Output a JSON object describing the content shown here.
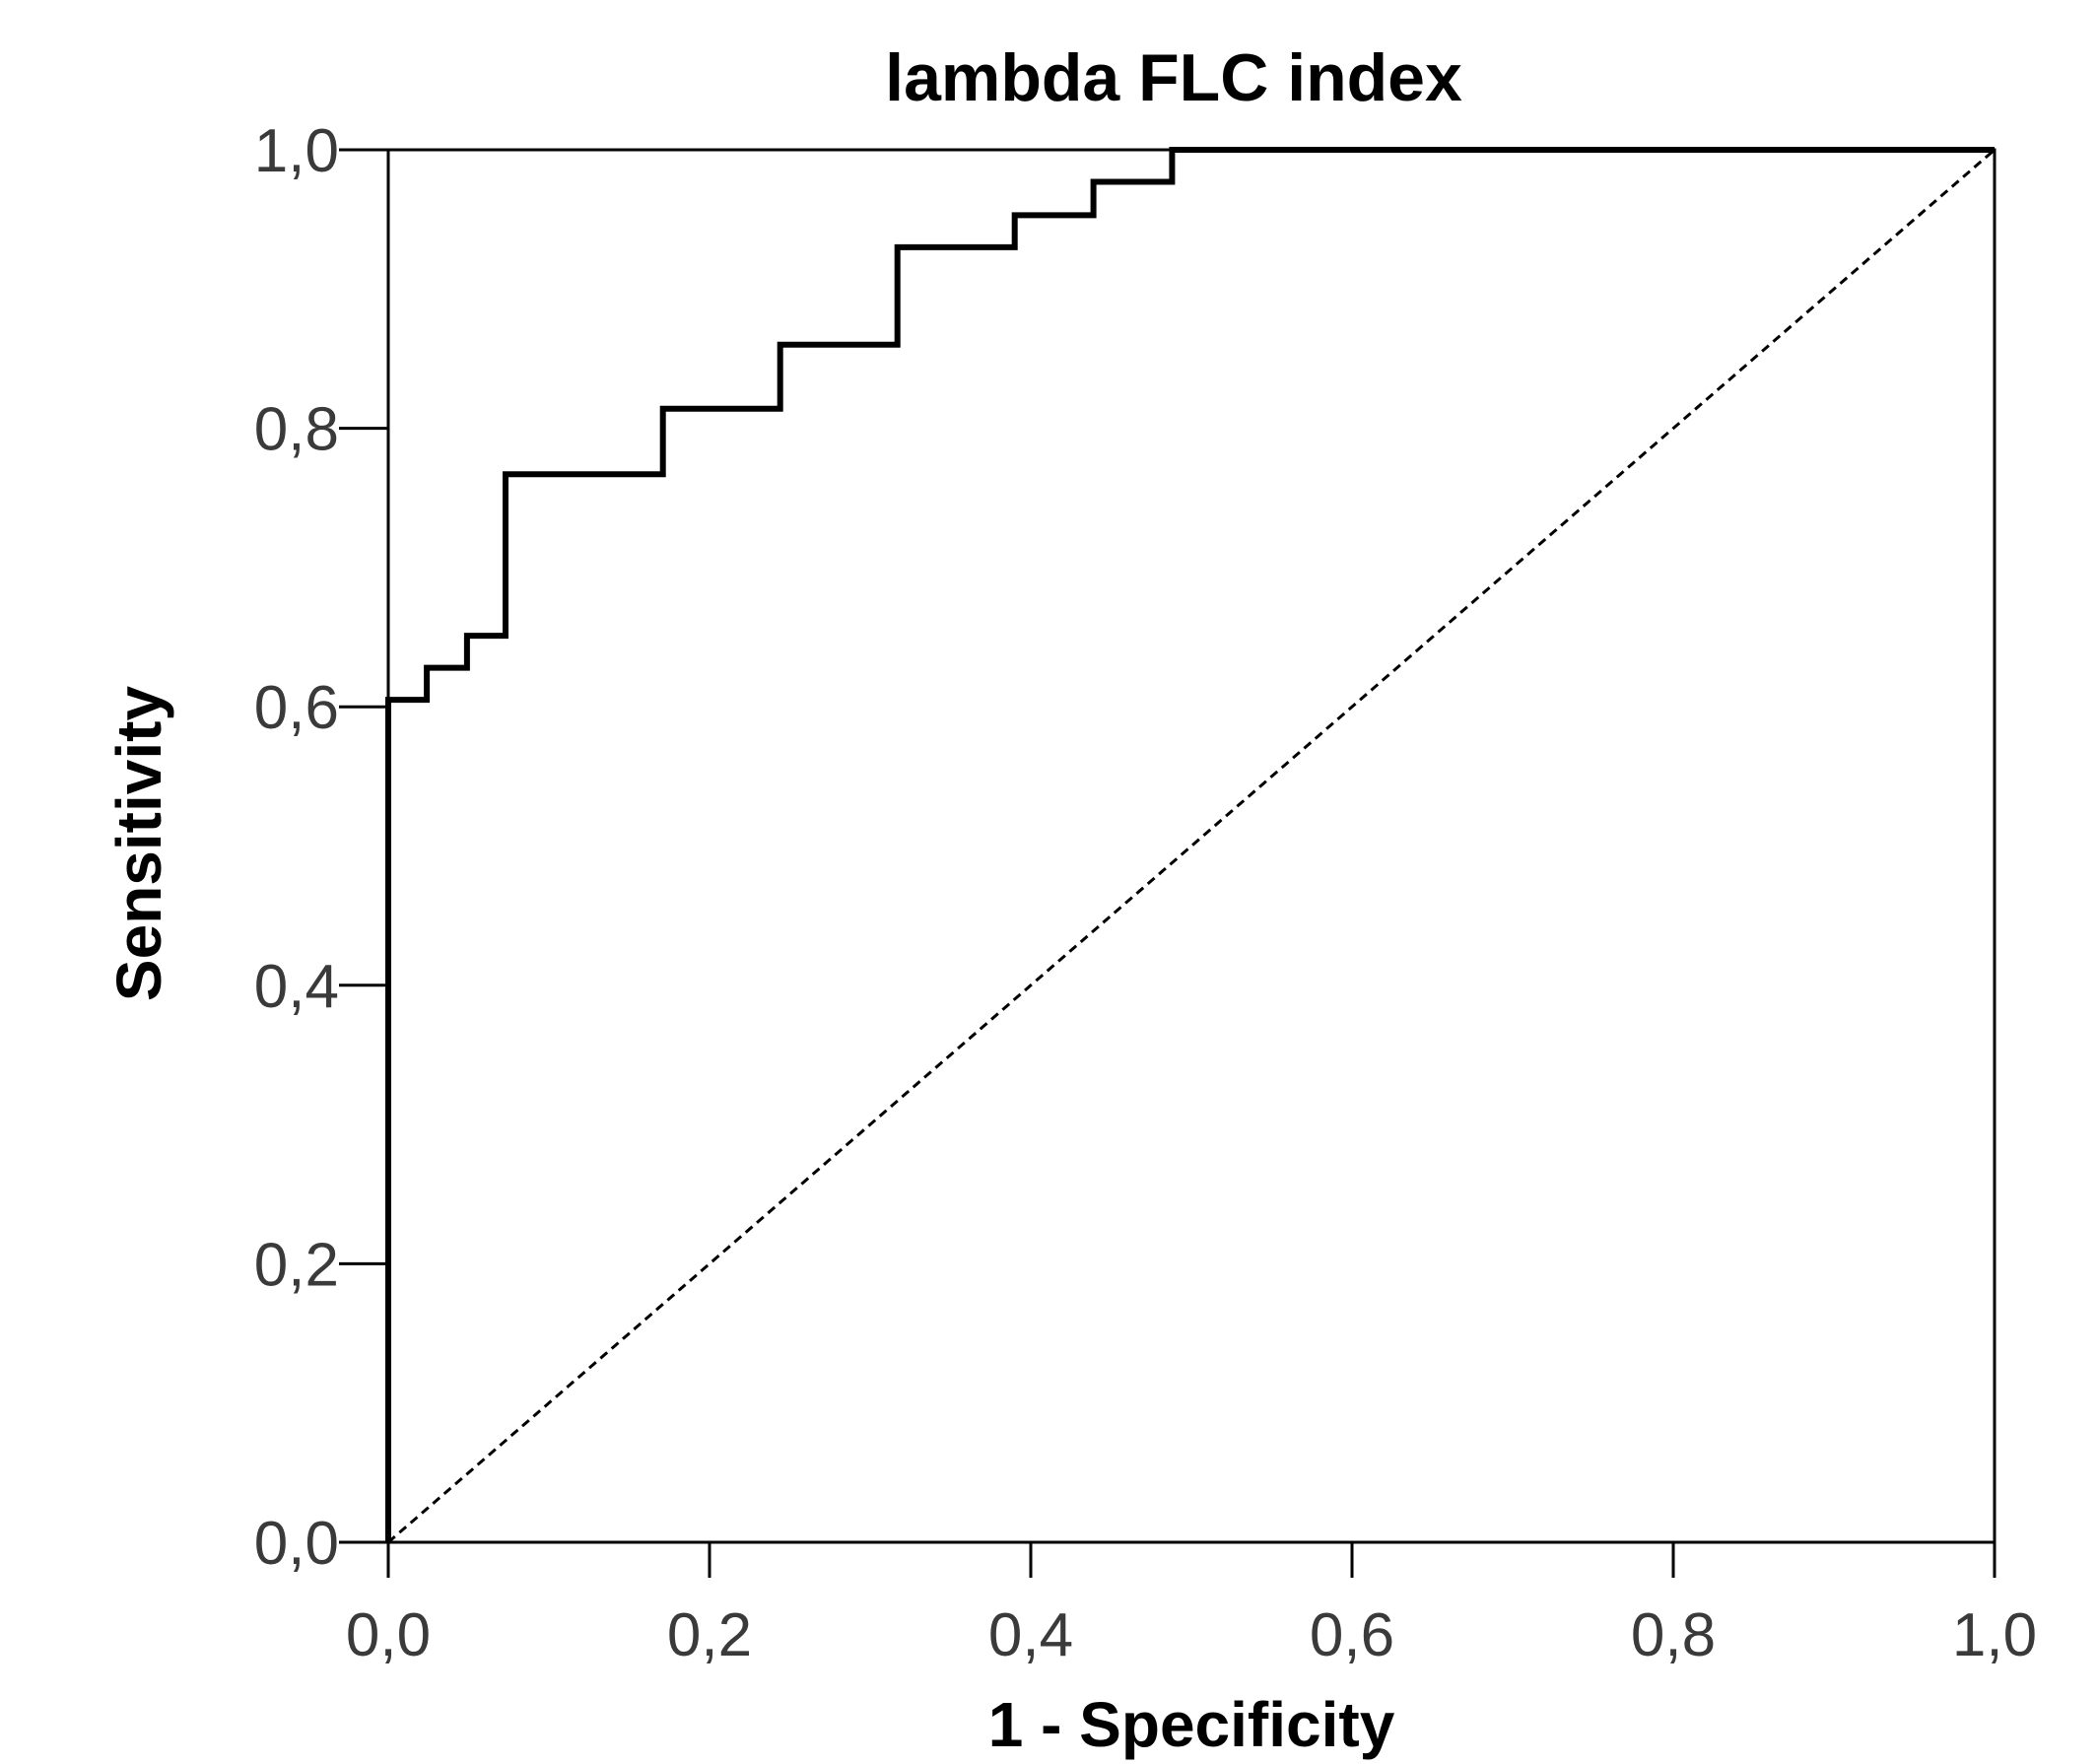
{
  "chart_data": {
    "type": "line",
    "title": "lambda FLC index",
    "xlabel": "1 - Specificity",
    "ylabel": "Sensitivity",
    "xlim": [
      0,
      1
    ],
    "ylim": [
      0,
      1
    ],
    "x_ticks": [
      "0,0",
      "0,2",
      "0,4",
      "0,6",
      "0,8",
      "1,0"
    ],
    "y_ticks": [
      "0,0",
      "0,2",
      "0,4",
      "0,6",
      "0,8",
      "1,0"
    ],
    "x_tick_values": [
      0,
      0.2,
      0.4,
      0.6,
      0.8,
      1.0
    ],
    "y_tick_values": [
      0,
      0.2,
      0.4,
      0.6,
      0.8,
      1.0
    ],
    "grid": false,
    "series": [
      {
        "style": "step",
        "color": "#000000",
        "points": [
          [
            0.0,
            0.0
          ],
          [
            0.0,
            0.605
          ],
          [
            0.024,
            0.605
          ],
          [
            0.024,
            0.628
          ],
          [
            0.049,
            0.628
          ],
          [
            0.049,
            0.651
          ],
          [
            0.073,
            0.651
          ],
          [
            0.073,
            0.767
          ],
          [
            0.171,
            0.767
          ],
          [
            0.171,
            0.814
          ],
          [
            0.244,
            0.814
          ],
          [
            0.244,
            0.86
          ],
          [
            0.317,
            0.86
          ],
          [
            0.317,
            0.93
          ],
          [
            0.39,
            0.93
          ],
          [
            0.39,
            0.953
          ],
          [
            0.439,
            0.953
          ],
          [
            0.439,
            0.977
          ],
          [
            0.488,
            0.977
          ],
          [
            0.488,
            1.0
          ],
          [
            1.0,
            1.0
          ]
        ]
      },
      {
        "style": "dashed",
        "color": "#000000",
        "points": [
          [
            0.0,
            0.0
          ],
          [
            1.0,
            1.0
          ]
        ]
      }
    ]
  }
}
